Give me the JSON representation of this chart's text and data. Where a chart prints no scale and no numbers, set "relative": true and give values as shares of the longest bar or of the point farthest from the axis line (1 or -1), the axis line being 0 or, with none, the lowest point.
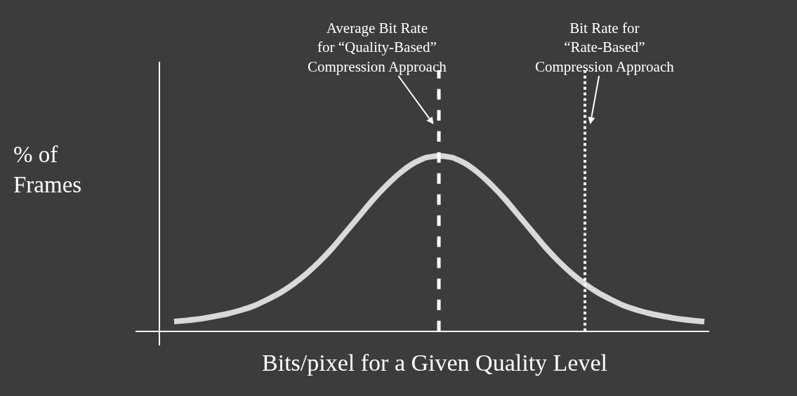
{
  "chart_data": {
    "type": "line",
    "relative": true,
    "xlabel": "Bits/pixel for a Given Quality Level",
    "ylabel": "% of\nFrames",
    "categories": [
      null,
      null,
      null,
      null,
      null,
      null,
      null,
      null,
      null,
      null,
      null,
      null,
      null,
      null,
      null,
      null,
      null,
      null,
      null,
      null,
      null,
      null,
      null,
      null,
      null,
      null,
      null,
      null,
      null,
      null,
      null,
      null,
      null,
      null,
      null,
      null,
      null,
      null,
      null,
      null,
      null
    ],
    "series": [
      {
        "color": "#d9d9d9",
        "values": [
          0.056,
          0.063,
          0.072,
          0.085,
          0.1,
          0.12,
          0.145,
          0.18,
          0.22,
          0.27,
          0.33,
          0.4,
          0.48,
          0.57,
          0.66,
          0.75,
          0.83,
          0.9,
          0.955,
          0.99,
          1.0,
          0.99,
          0.955,
          0.9,
          0.83,
          0.75,
          0.66,
          0.57,
          0.48,
          0.4,
          0.33,
          0.27,
          0.22,
          0.18,
          0.145,
          0.12,
          0.1,
          0.085,
          0.072,
          0.063,
          0.056
        ]
      }
    ],
    "annotations": [
      "Average Bit Rate\nfor “Quality-Based”\nCompression Approach",
      "Bit Rate for\n“Rate-Based”\nCompression Approach"
    ],
    "marker": "none",
    "line_style": "solid",
    "grid": false
  }
}
